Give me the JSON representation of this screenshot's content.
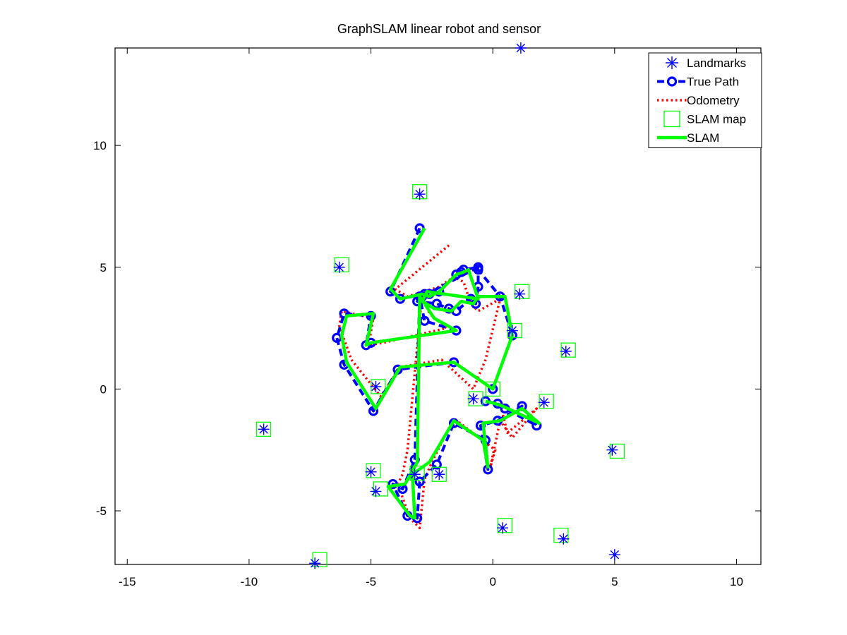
{
  "chart_data": {
    "type": "line",
    "title": "GraphSLAM linear robot and sensor",
    "xlabel": "",
    "ylabel": "",
    "xlim": [
      -15.5,
      11
    ],
    "ylim": [
      -7.2,
      14
    ],
    "xticks": [
      -15,
      -10,
      -5,
      0,
      5,
      10
    ],
    "yticks": [
      -5,
      0,
      5,
      10
    ],
    "grid": false,
    "legend_position": "top-right",
    "series": [
      {
        "name": "Landmarks",
        "kind": "marker-asterisk",
        "color": "#0000ff",
        "x": [
          1.15,
          -3.0,
          -6.3,
          1.1,
          0.8,
          3.0,
          -0.8,
          -4.8,
          2.1,
          -9.4,
          4.9,
          -5.0,
          -3.2,
          -4.8,
          -2.2,
          0.4,
          2.9,
          5.0,
          -7.3
        ],
        "y": [
          14.0,
          8.0,
          5.0,
          3.9,
          2.4,
          1.55,
          -0.4,
          0.1,
          -0.55,
          -1.65,
          -2.5,
          -3.4,
          -3.5,
          -4.2,
          -3.5,
          -5.7,
          -6.15,
          -6.8,
          -7.15
        ]
      },
      {
        "name": "True Path",
        "kind": "line-dashed-circles",
        "color": "#0000ff",
        "x": [
          -3.0,
          -4.2,
          -3.8,
          -2.8,
          -2.6,
          -2.2,
          -1.5,
          -1.3,
          -1.2,
          -0.6,
          -2.9,
          -3.1,
          -2.3,
          -1.8,
          -1.5,
          -0.9,
          -0.7,
          -0.6,
          -0.6,
          0.3,
          0.8,
          0.0,
          -1.6,
          -3.9,
          -4.9,
          -6.1,
          -6.4,
          -6.1,
          -5.0,
          -5.2,
          -5.0,
          -1.5,
          -2.8,
          -3.0,
          -3.2,
          -3.7,
          -4.1,
          -3.5,
          -3.1,
          -3.0,
          -2.3,
          -1.6,
          -0.3,
          -0.2,
          -0.5,
          0.2,
          1.2,
          1.8,
          0.5,
          0.2,
          -0.3
        ],
        "y": [
          6.6,
          4.0,
          3.7,
          3.9,
          3.9,
          4.0,
          4.7,
          4.8,
          4.9,
          5.0,
          3.8,
          3.6,
          3.5,
          3.3,
          3.2,
          3.7,
          3.5,
          4.2,
          4.9,
          3.8,
          2.2,
          0.0,
          1.1,
          0.8,
          -0.9,
          1.0,
          2.1,
          3.1,
          3.0,
          1.8,
          1.9,
          2.4,
          2.8,
          3.8,
          -2.9,
          -4.1,
          -3.9,
          -5.2,
          -5.3,
          -3.8,
          -3.1,
          -1.4,
          -2.1,
          -3.3,
          -1.5,
          -1.3,
          -0.7,
          -1.5,
          -0.8,
          -0.6,
          -0.5
        ]
      },
      {
        "name": "Odometry",
        "kind": "line-dotted",
        "color": "#ff0000",
        "x": [
          -1.8,
          -4.0,
          -3.5,
          -2.5,
          -2.2,
          -1.6,
          -1.2,
          -0.9,
          -0.6,
          0.3,
          -0.3,
          -0.8,
          -2.1,
          -3.8,
          -4.6,
          -5.8,
          -6.3,
          -6.2,
          -4.9,
          -5.1,
          -4.5,
          -1.9,
          -2.6,
          -2.9,
          -3.5,
          -3.7,
          -3.9,
          -3.4,
          -3.0,
          -2.8,
          -2.5,
          -1.6,
          0.1,
          -0.1,
          0.3,
          0.8,
          1.8,
          0.6,
          0.3
        ],
        "y": [
          5.9,
          4.1,
          3.8,
          4.1,
          4.2,
          4.6,
          4.4,
          3.5,
          3.2,
          3.7,
          1.2,
          0.0,
          1.2,
          0.9,
          -0.3,
          1.2,
          2.6,
          3.2,
          2.9,
          1.8,
          1.9,
          2.5,
          3.1,
          3.9,
          -2.5,
          -3.5,
          -3.9,
          -5.3,
          -5.7,
          -3.7,
          -3.0,
          -1.2,
          -2.5,
          -3.2,
          -1.3,
          -2.0,
          -0.8,
          -1.8,
          -0.6
        ]
      },
      {
        "name": "SLAM map",
        "kind": "marker-square",
        "color": "#00ff00",
        "x": [
          -3.0,
          -6.2,
          1.2,
          0.9,
          3.1,
          -0.7,
          -4.7,
          2.2,
          -9.4,
          5.1,
          -4.9,
          -3.1,
          -4.6,
          -2.2,
          0.5,
          2.8,
          -7.1,
          0.0
        ],
        "y": [
          8.1,
          5.1,
          4.0,
          2.4,
          1.6,
          -0.4,
          0.1,
          -0.5,
          -1.65,
          -2.55,
          -3.35,
          -3.45,
          -4.1,
          -3.5,
          -5.6,
          -6.0,
          -7.0,
          0.0
        ]
      },
      {
        "name": "SLAM",
        "kind": "line-solid",
        "color": "#00ff00",
        "x": [
          -2.8,
          -4.2,
          -3.8,
          -2.9,
          -2.6,
          -2.2,
          -1.5,
          -1.2,
          -1.0,
          -0.6,
          -2.7,
          -2.9,
          -2.4,
          -1.7,
          -1.3,
          -0.8,
          -0.6,
          0.5,
          0.8,
          0.0,
          -1.6,
          -3.8,
          -4.8,
          -6.0,
          -6.2,
          -6.0,
          -4.9,
          -5.2,
          -5.0,
          -1.5,
          -2.4,
          -3.0,
          -3.1,
          -3.6,
          -4.3,
          -3.4,
          -3.2,
          -3.3,
          -2.6,
          -1.6,
          -0.4,
          -0.2,
          -0.4,
          0.3,
          1.2,
          1.9,
          0.4,
          0.1,
          -0.3
        ],
        "y": [
          6.6,
          4.1,
          3.7,
          3.9,
          3.8,
          4.0,
          4.7,
          4.8,
          4.9,
          3.7,
          4.0,
          3.6,
          3.3,
          3.2,
          3.6,
          3.5,
          3.8,
          3.8,
          2.2,
          0.0,
          1.1,
          0.9,
          -0.8,
          1.1,
          2.2,
          3.0,
          3.1,
          1.8,
          1.9,
          2.4,
          2.9,
          3.8,
          -3.0,
          -3.9,
          -4.0,
          -5.2,
          -5.3,
          -3.5,
          -3.0,
          -1.3,
          -2.1,
          -3.2,
          -1.4,
          -1.3,
          -0.8,
          -1.4,
          -0.7,
          -0.6,
          -0.5
        ]
      }
    ]
  }
}
